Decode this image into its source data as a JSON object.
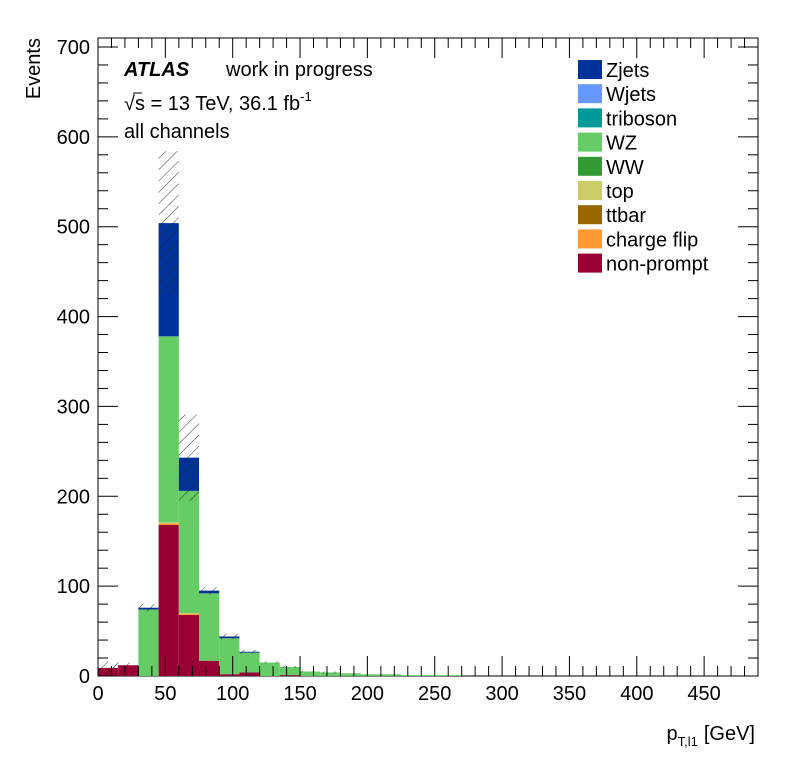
{
  "chart_data": {
    "type": "bar",
    "stacked": true,
    "binning": {
      "start": 0,
      "width": 15,
      "n_bins": 33
    },
    "bin_edges_first_last": [
      0,
      495
    ],
    "annotations": {
      "atlas": "ATLAS",
      "work": "work in progress",
      "energy_pre": "√s = 13 TeV, 36.1 fb",
      "energy_sup": "-1",
      "channel": "all channels"
    },
    "xlabel": "p",
    "xlabel_sub": "T,l1",
    "xlabel_unit": "[GeV]",
    "ylabel": "Events",
    "xlim": [
      0,
      490
    ],
    "ylim": [
      0,
      710
    ],
    "xticks": [
      0,
      50,
      100,
      150,
      200,
      250,
      300,
      350,
      400,
      450
    ],
    "yticks": [
      0,
      100,
      200,
      300,
      400,
      500,
      600,
      700
    ],
    "legend_position": "top-right",
    "legend_order": [
      "Zjets",
      "Wjets",
      "triboson",
      "WZ",
      "WW",
      "top",
      "ttbar",
      "charge flip",
      "non-prompt"
    ],
    "series": [
      {
        "name": "non-prompt",
        "color": "#990033",
        "values": [
          9,
          12,
          0,
          168,
          68,
          17,
          2,
          4,
          0,
          1,
          0,
          0,
          0,
          0,
          0,
          0,
          0,
          0,
          0,
          0,
          0,
          0,
          0,
          0,
          0,
          0,
          0,
          0,
          0,
          0,
          0,
          0,
          0
        ]
      },
      {
        "name": "charge flip",
        "color": "#FF9933",
        "values": [
          0,
          0,
          0,
          2,
          1,
          0,
          0,
          0,
          0,
          0,
          0,
          0,
          0,
          0,
          0,
          0,
          0,
          0,
          0,
          0,
          0,
          0,
          0,
          0,
          0,
          0,
          0,
          0,
          0,
          0,
          0,
          0,
          0
        ]
      },
      {
        "name": "ttbar",
        "color": "#996600",
        "values": [
          0,
          0,
          0,
          0,
          0,
          0,
          0,
          0,
          0,
          0,
          0,
          0,
          0,
          0,
          0,
          0,
          0,
          0,
          0,
          0,
          0,
          0,
          0,
          0,
          0,
          0,
          0,
          0,
          0,
          0,
          0,
          0,
          0
        ]
      },
      {
        "name": "top",
        "color": "#CCCC66",
        "values": [
          0,
          0,
          0,
          1,
          1,
          0,
          0,
          0,
          0,
          0,
          0,
          0,
          0,
          0,
          0,
          0,
          0,
          0,
          0,
          0,
          0,
          0,
          0,
          0,
          0,
          0,
          0,
          0,
          0,
          0,
          0,
          0,
          0
        ]
      },
      {
        "name": "WW",
        "color": "#339933",
        "values": [
          0,
          0,
          0,
          0,
          0,
          0,
          0,
          0,
          0,
          0,
          0,
          0,
          0,
          0,
          0,
          0,
          0,
          0,
          0,
          0,
          0,
          0,
          0,
          0,
          0,
          0,
          0,
          0,
          0,
          0,
          0,
          0,
          0
        ]
      },
      {
        "name": "WZ",
        "color": "#66CC66",
        "values": [
          0,
          0,
          74,
          207,
          136,
          75,
          40,
          22,
          15,
          9,
          5,
          4,
          3,
          2,
          2,
          1,
          1,
          1,
          0,
          0,
          0,
          0,
          0,
          0,
          0,
          0,
          0,
          0,
          0,
          0,
          0,
          0,
          0
        ]
      },
      {
        "name": "triboson",
        "color": "#009999",
        "values": [
          0,
          0,
          0,
          0,
          0,
          0,
          0,
          0,
          0,
          0,
          0,
          0,
          0,
          0,
          0,
          0,
          0,
          0,
          0,
          0,
          0,
          0,
          0,
          0,
          0,
          0,
          0,
          0,
          0,
          0,
          0,
          0,
          0
        ]
      },
      {
        "name": "Wjets",
        "color": "#6699FF",
        "values": [
          0,
          0,
          0,
          0,
          0,
          0,
          0,
          0,
          0,
          0,
          0,
          0,
          0,
          0,
          0,
          0,
          0,
          0,
          0,
          0,
          0,
          0,
          0,
          0,
          0,
          0,
          0,
          0,
          0,
          0,
          0,
          0,
          0
        ]
      },
      {
        "name": "Zjets",
        "color": "#003399",
        "values": [
          0,
          0,
          2,
          126,
          37,
          3,
          2,
          1,
          0,
          0,
          0,
          0,
          0,
          0,
          0,
          0,
          0,
          0,
          0,
          0,
          0,
          0,
          0,
          0,
          0,
          0,
          0,
          0,
          0,
          0,
          0,
          0,
          0
        ]
      }
    ],
    "uncertainty_hatched": true,
    "uncertainty_values": [
      7,
      3,
      4,
      80,
      48,
      4,
      3,
      2,
      1,
      1,
      1,
      1,
      0,
      0,
      0,
      0,
      0,
      0,
      0,
      0,
      0,
      0,
      0,
      0,
      0,
      0,
      0,
      0,
      0,
      0,
      0,
      0,
      0
    ]
  }
}
